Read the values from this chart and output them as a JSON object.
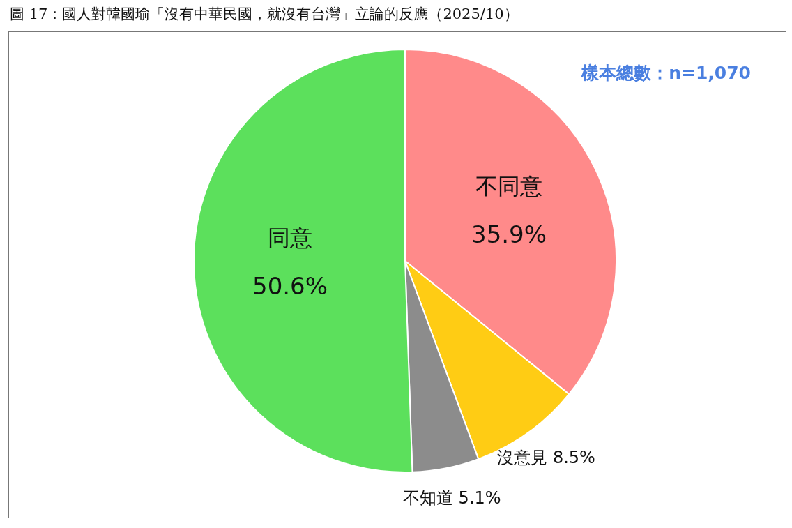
{
  "chart_data": {
    "type": "pie",
    "title": "圖 17：國人對韓國瑜「沒有中華民國，就沒有台灣」立論的反應（2025/10）",
    "categories": [
      "不同意",
      "沒意見",
      "不知道",
      "同意"
    ],
    "values": [
      35.9,
      8.5,
      5.1,
      50.6
    ],
    "colors": [
      "#ff8a8a",
      "#ffcc14",
      "#8c8c8c",
      "#5ce05c"
    ],
    "value_labels": [
      "35.9%",
      "8.5%",
      "5.1%",
      "50.6%"
    ],
    "annotations": [
      "樣本總數：n=1,070"
    ]
  }
}
